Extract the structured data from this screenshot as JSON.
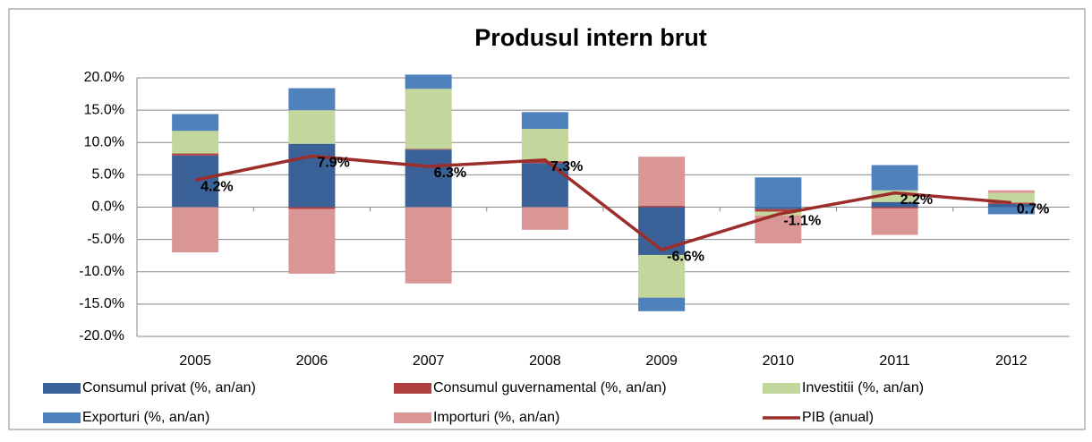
{
  "chart_data": {
    "type": "bar",
    "stacked": true,
    "title": "Produsul intern brut",
    "categories": [
      "2005",
      "2006",
      "2007",
      "2008",
      "2009",
      "2010",
      "2011",
      "2012"
    ],
    "series": [
      {
        "name": "Consumul privat (%, an/an)",
        "color": "#3a6198",
        "values": [
          8.0,
          9.8,
          8.9,
          6.8,
          -7.4,
          -0.3,
          0.8,
          0.5
        ]
      },
      {
        "name": "Consumul guvernamental (%, an/an)",
        "color": "#b0413e",
        "values": [
          0.3,
          -0.3,
          0.1,
          0.3,
          0.2,
          -0.4,
          -0.2,
          0.2
        ]
      },
      {
        "name": "Investitii (%, an/an)",
        "color": "#c3d69b",
        "values": [
          3.5,
          5.2,
          9.3,
          5.0,
          -6.6,
          -0.6,
          1.8,
          1.5
        ]
      },
      {
        "name": "Exporturi (%, an/an)",
        "color": "#4f81bd",
        "values": [
          2.6,
          3.4,
          2.2,
          2.6,
          -2.1,
          4.6,
          3.9,
          -1.1
        ]
      },
      {
        "name": "Importuri (%, an/an)",
        "color": "#d99694",
        "values": [
          -7.0,
          -10.0,
          -11.8,
          -3.5,
          7.6,
          -4.3,
          -4.1,
          0.4
        ]
      },
      {
        "name": "PIB (anual)",
        "type": "line",
        "color": "#9b2d2a",
        "values": [
          4.2,
          7.9,
          6.3,
          7.3,
          -6.6,
          -1.1,
          2.2,
          0.7
        ],
        "value_labels": [
          "4.2%",
          "7.9%",
          "6.3%",
          "7.3%",
          "-6.6%",
          "-1.1%",
          "2.2%",
          "0.7%"
        ]
      }
    ],
    "ylim": [
      -20,
      20
    ],
    "yticks": [
      {
        "value": -20,
        "label": "-20.0%"
      },
      {
        "value": -15,
        "label": "-15.0%"
      },
      {
        "value": -10,
        "label": "-10.0%"
      },
      {
        "value": -5,
        "label": "-5.0%"
      },
      {
        "value": 0,
        "label": "0.0%"
      },
      {
        "value": 5,
        "label": "5.0%"
      },
      {
        "value": 10,
        "label": "10.0%"
      },
      {
        "value": 15,
        "label": "15.0%"
      },
      {
        "value": 20,
        "label": "20.0%"
      }
    ],
    "grid": true,
    "legend": "bottom"
  }
}
